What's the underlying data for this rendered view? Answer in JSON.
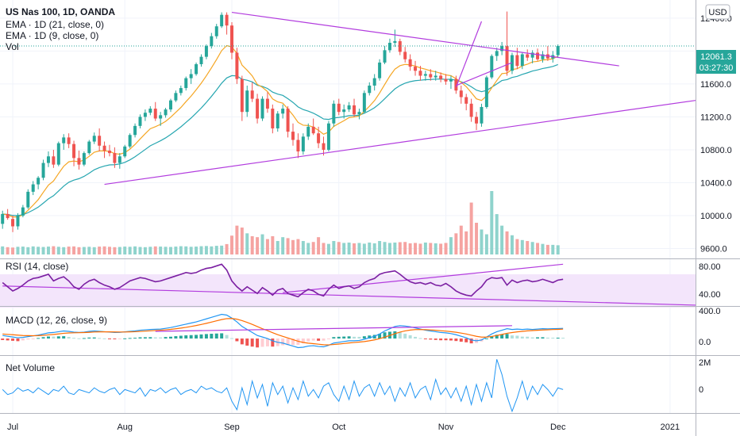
{
  "header": {
    "symbol_line": "US Nas 100, 1D, OANDA",
    "ema21": "EMA · 1D (21, close, 0)",
    "ema9": "EMA · 1D (9, close, 0)",
    "vol": "Vol",
    "currency": "USD"
  },
  "price_tag": {
    "last": "12061.3",
    "countdown": "03:27:30"
  },
  "panes": {
    "rsi": {
      "label": "RSI (14, close)",
      "ticks": [
        "80.00",
        "40.00"
      ]
    },
    "macd": {
      "label": "MACD (12, 26, close, 9)",
      "ticks": [
        "400.0",
        "0.0"
      ]
    },
    "netvol": {
      "label": "Net Volume",
      "ticks": [
        "2M",
        "0"
      ]
    }
  },
  "colors": {
    "up": "#26a69a",
    "down": "#ef5350",
    "trendline": "#b23cde",
    "ema21": "#26a6b0",
    "ema9": "#f5a623",
    "rsi": "#7b1fa2",
    "macd": "#2196f3",
    "signal": "#ff6d00",
    "netvol": "#2196f3"
  },
  "chart_data": {
    "type": "candlestick",
    "y_axis": {
      "ticks": [
        9600,
        10000,
        10400,
        10800,
        11200,
        11600,
        12000,
        12400
      ],
      "tick_labels": [
        "9600.0",
        "10000.0",
        "10400.0",
        "10800.0",
        "11200.0",
        "11600.0",
        "",
        "12400.0"
      ],
      "range": [
        9480,
        12620
      ]
    },
    "x_axis": {
      "labels": [
        "Jul",
        "Aug",
        "Sep",
        "Oct",
        "Nov",
        "Dec",
        "2021"
      ],
      "label_index": [
        2,
        24,
        45,
        66,
        87,
        109,
        131
      ],
      "range": [
        -0.5,
        136
      ]
    },
    "candles": [
      [
        9900,
        10060,
        9840,
        10020
      ],
      [
        10020,
        10080,
        9950,
        9970
      ],
      [
        9960,
        10000,
        9800,
        9870
      ],
      [
        9870,
        10030,
        9830,
        10000
      ],
      [
        10000,
        10130,
        9980,
        10100
      ],
      [
        10100,
        10320,
        10080,
        10290
      ],
      [
        10290,
        10420,
        10250,
        10380
      ],
      [
        10380,
        10480,
        10320,
        10460
      ],
      [
        10460,
        10680,
        10430,
        10640
      ],
      [
        10640,
        10780,
        10590,
        10720
      ],
      [
        10720,
        10800,
        10580,
        10620
      ],
      [
        10620,
        10900,
        10600,
        10880
      ],
      [
        10880,
        10990,
        10800,
        10950
      ],
      [
        10950,
        11000,
        10820,
        10870
      ],
      [
        10870,
        10910,
        10600,
        10700
      ],
      [
        10700,
        10790,
        10560,
        10620
      ],
      [
        10620,
        10780,
        10600,
        10760
      ],
      [
        10760,
        10920,
        10740,
        10900
      ],
      [
        10900,
        11010,
        10870,
        10970
      ],
      [
        10970,
        11060,
        10780,
        10850
      ],
      [
        10850,
        10900,
        10700,
        10790
      ],
      [
        10790,
        10860,
        10720,
        10760
      ],
      [
        10760,
        10830,
        10580,
        10640
      ],
      [
        10640,
        10760,
        10570,
        10720
      ],
      [
        10720,
        10860,
        10700,
        10840
      ],
      [
        10840,
        11000,
        10820,
        10980
      ],
      [
        10980,
        11120,
        10950,
        11090
      ],
      [
        11090,
        11230,
        11060,
        11200
      ],
      [
        11200,
        11290,
        11150,
        11250
      ],
      [
        11250,
        11330,
        11220,
        11300
      ],
      [
        11300,
        11380,
        11150,
        11180
      ],
      [
        11180,
        11260,
        11090,
        11220
      ],
      [
        11220,
        11310,
        11190,
        11290
      ],
      [
        11290,
        11420,
        11260,
        11400
      ],
      [
        11400,
        11520,
        11380,
        11490
      ],
      [
        11490,
        11580,
        11460,
        11550
      ],
      [
        11550,
        11690,
        11520,
        11670
      ],
      [
        11670,
        11780,
        11600,
        11720
      ],
      [
        11720,
        11860,
        11700,
        11840
      ],
      [
        11840,
        11960,
        11810,
        11930
      ],
      [
        11930,
        12080,
        11900,
        12060
      ],
      [
        12060,
        12220,
        12030,
        12180
      ],
      [
        12180,
        12330,
        12150,
        12300
      ],
      [
        12300,
        12470,
        12280,
        12440
      ],
      [
        12440,
        12470,
        12200,
        12310
      ],
      [
        12310,
        12350,
        11900,
        11980
      ],
      [
        11980,
        12040,
        11600,
        11660
      ],
      [
        11660,
        11700,
        11150,
        11260
      ],
      [
        11260,
        11580,
        11200,
        11520
      ],
      [
        11520,
        11620,
        11380,
        11420
      ],
      [
        11420,
        11480,
        11120,
        11180
      ],
      [
        11180,
        11450,
        11150,
        11420
      ],
      [
        11420,
        11500,
        11250,
        11300
      ],
      [
        11300,
        11350,
        11000,
        11060
      ],
      [
        11060,
        11270,
        11020,
        11240
      ],
      [
        11240,
        11350,
        11180,
        11300
      ],
      [
        11300,
        11330,
        10950,
        11020
      ],
      [
        11020,
        11120,
        10850,
        10920
      ],
      [
        10920,
        11000,
        10700,
        10780
      ],
      [
        10780,
        11000,
        10740,
        10960
      ],
      [
        10960,
        11120,
        10920,
        11080
      ],
      [
        11080,
        11180,
        10980,
        11000
      ],
      [
        11000,
        11080,
        10820,
        10880
      ],
      [
        10880,
        10960,
        10730,
        10800
      ],
      [
        10800,
        11150,
        10780,
        11120
      ],
      [
        11120,
        11400,
        11080,
        11360
      ],
      [
        11360,
        11420,
        11220,
        11260
      ],
      [
        11260,
        11350,
        11180,
        11290
      ],
      [
        11290,
        11380,
        11260,
        11340
      ],
      [
        11340,
        11420,
        11200,
        11230
      ],
      [
        11230,
        11300,
        11170,
        11260
      ],
      [
        11260,
        11520,
        11240,
        11490
      ],
      [
        11490,
        11620,
        11460,
        11580
      ],
      [
        11580,
        11720,
        11520,
        11670
      ],
      [
        11670,
        11900,
        11640,
        11860
      ],
      [
        11860,
        12060,
        11840,
        12010
      ],
      [
        12010,
        12150,
        11980,
        12100
      ],
      [
        12100,
        12260,
        12050,
        12120
      ],
      [
        12120,
        12150,
        11950,
        11990
      ],
      [
        11990,
        12050,
        11860,
        11900
      ],
      [
        11900,
        11960,
        11760,
        11810
      ],
      [
        11810,
        11880,
        11700,
        11760
      ],
      [
        11760,
        11820,
        11640,
        11700
      ],
      [
        11700,
        11760,
        11640,
        11720
      ],
      [
        11720,
        11780,
        11640,
        11680
      ],
      [
        11680,
        11760,
        11640,
        11700
      ],
      [
        11700,
        11740,
        11620,
        11660
      ],
      [
        11660,
        11720,
        11590,
        11630
      ],
      [
        11630,
        11700,
        11540,
        11660
      ],
      [
        11660,
        11700,
        11480,
        11520
      ],
      [
        11520,
        11580,
        11360,
        11440
      ],
      [
        11440,
        11480,
        11280,
        11360
      ],
      [
        11360,
        11420,
        11140,
        11200
      ],
      [
        11200,
        11260,
        11040,
        11120
      ],
      [
        11120,
        11360,
        11080,
        11320
      ],
      [
        11320,
        11700,
        11300,
        11680
      ],
      [
        11680,
        11960,
        11660,
        11940
      ],
      [
        11940,
        12040,
        11880,
        12000
      ],
      [
        12000,
        12110,
        11950,
        12060
      ],
      [
        12060,
        12480,
        11700,
        11760
      ],
      [
        11760,
        11980,
        11720,
        11950
      ],
      [
        11950,
        12040,
        11780,
        11820
      ],
      [
        11820,
        11980,
        11780,
        11960
      ],
      [
        11960,
        12020,
        11880,
        11920
      ],
      [
        11920,
        12010,
        11850,
        11980
      ],
      [
        11980,
        12030,
        11880,
        11900
      ],
      [
        11900,
        12000,
        11860,
        11960
      ],
      [
        11960,
        12060,
        11880,
        11910
      ],
      [
        11910,
        12000,
        11860,
        11950
      ],
      [
        11950,
        12080,
        11920,
        12061
      ]
    ],
    "volume": {
      "range": [
        0,
        3300
      ],
      "values": [
        420,
        380,
        360,
        400,
        410,
        380,
        420,
        400,
        390,
        410,
        430,
        400,
        380,
        410,
        420,
        380,
        390,
        400,
        380,
        410,
        420,
        400,
        380,
        390,
        410,
        400,
        420,
        390,
        380,
        400,
        420,
        410,
        400,
        390,
        410,
        430,
        420,
        400,
        410,
        430,
        440,
        420,
        450,
        460,
        540,
        980,
        1500,
        1400,
        1100,
        950,
        900,
        1050,
        800,
        950,
        700,
        900,
        850,
        750,
        800,
        700,
        600,
        650,
        900,
        600,
        550,
        700,
        650,
        600,
        620,
        580,
        600,
        560,
        620,
        580,
        700,
        650,
        600,
        620,
        640,
        650,
        580,
        600,
        560,
        620,
        600,
        580,
        560,
        600,
        900,
        1100,
        1500,
        1200,
        2700,
        1650,
        1300,
        1050,
        3300,
        2100,
        1500,
        1200,
        1000,
        800,
        750,
        700,
        650,
        600,
        550,
        500,
        500,
        480
      ]
    },
    "trendlines": [
      {
        "from": [
          45,
          12470
        ],
        "to": [
          121,
          11820
        ]
      },
      {
        "from": [
          20,
          10380
        ],
        "to": [
          136,
          11400
        ]
      },
      {
        "from": [
          89,
          11580
        ],
        "to": [
          100,
          11860
        ]
      },
      {
        "from": [
          89,
          11560
        ],
        "to": [
          94,
          12360
        ]
      }
    ],
    "rsi": {
      "range": [
        32,
        88
      ],
      "values": [
        60,
        55,
        50,
        53,
        57,
        62,
        65,
        66,
        68,
        70,
        62,
        65,
        67,
        62,
        55,
        52,
        58,
        62,
        64,
        60,
        57,
        55,
        52,
        54,
        58,
        62,
        64,
        66,
        65,
        63,
        61,
        62,
        64,
        66,
        68,
        70,
        72,
        71,
        72,
        75,
        77,
        78,
        80,
        82,
        75,
        62,
        55,
        50,
        55,
        51,
        47,
        54,
        50,
        45,
        51,
        53,
        47,
        45,
        43,
        48,
        52,
        50,
        46,
        44,
        52,
        57,
        53,
        55,
        56,
        53,
        55,
        60,
        63,
        65,
        70,
        72,
        73,
        74,
        70,
        65,
        61,
        59,
        60,
        58,
        60,
        57,
        56,
        59,
        55,
        50,
        47,
        45,
        44,
        50,
        55,
        63,
        66,
        65,
        66,
        57,
        63,
        60,
        62,
        63,
        61,
        62,
        64,
        62,
        60,
        63,
        64
      ],
      "trendlines": [
        {
          "from": [
            0,
            56
          ],
          "to": [
            136,
            33
          ]
        },
        {
          "from": [
            55,
            48
          ],
          "to": [
            110,
            82
          ]
        }
      ]
    },
    "macd": {
      "range": [
        -220,
        420
      ],
      "macd": [
        40,
        30,
        20,
        10,
        15,
        25,
        35,
        45,
        60,
        75,
        80,
        90,
        100,
        95,
        85,
        80,
        85,
        95,
        100,
        95,
        90,
        85,
        80,
        82,
        88,
        95,
        100,
        110,
        115,
        120,
        122,
        125,
        135,
        145,
        160,
        175,
        190,
        205,
        220,
        240,
        260,
        280,
        300,
        320,
        310,
        270,
        220,
        160,
        120,
        80,
        40,
        20,
        0,
        -30,
        -50,
        -60,
        -80,
        -100,
        -120,
        -115,
        -100,
        -95,
        -105,
        -110,
        -90,
        -60,
        -50,
        -40,
        -30,
        -30,
        -25,
        -10,
        10,
        30,
        60,
        100,
        130,
        160,
        170,
        165,
        155,
        140,
        125,
        110,
        100,
        90,
        80,
        75,
        65,
        50,
        30,
        10,
        -20,
        -30,
        -20,
        20,
        60,
        90,
        110,
        130,
        120,
        125,
        120,
        125,
        120,
        125,
        130,
        128,
        130,
        132,
        134
      ],
      "signal": [
        60,
        55,
        50,
        45,
        40,
        38,
        37,
        38,
        42,
        48,
        54,
        61,
        69,
        74,
        76,
        77,
        79,
        82,
        86,
        88,
        88,
        88,
        87,
        86,
        86,
        88,
        90,
        94,
        98,
        102,
        106,
        110,
        115,
        121,
        129,
        138,
        148,
        160,
        172,
        186,
        201,
        217,
        234,
        251,
        263,
        265,
        256,
        237,
        214,
        187,
        158,
        130,
        104,
        77,
        51,
        29,
        7,
        -15,
        -36,
        -52,
        -61,
        -68,
        -75,
        -82,
        -84,
        -79,
        -73,
        -66,
        -59,
        -53,
        -47,
        -40,
        -30,
        -18,
        -2,
        18,
        40,
        64,
        85,
        101,
        112,
        118,
        119,
        117,
        114,
        109,
        103,
        98,
        91,
        83,
        72,
        60,
        44,
        29,
        19,
        19,
        27,
        40,
        54,
        69,
        79,
        88,
        95,
        101,
        105,
        109,
        113,
        116,
        119,
        121,
        124
      ],
      "trendlines": [
        {
          "from": [
            30,
            95
          ],
          "to": [
            100,
            170
          ]
        }
      ]
    },
    "net_volume": {
      "range": [
        -1.3,
        2.1
      ],
      "values": [
        0.1,
        -0.2,
        -0.1,
        0.2,
        0,
        0.1,
        -0.1,
        0.2,
        0,
        -0.2,
        0.1,
        0,
        0.3,
        -0.1,
        -0.2,
        0.1,
        0,
        -0.1,
        0.2,
        0,
        -0.1,
        0.1,
        0.2,
        -0.2,
        0.1,
        0,
        -0.1,
        0.2,
        -0.3,
        0.1,
        0,
        0.2,
        -0.1,
        0.1,
        0.2,
        -0.2,
        0,
        0.1,
        -0.1,
        0.3,
        0.1,
        0.2,
        0,
        -0.1,
        0.2,
        -0.6,
        -1.1,
        0.2,
        -0.8,
        0.6,
        -0.4,
        0.4,
        -0.9,
        0.5,
        -0.2,
        0.3,
        -0.7,
        0.2,
        -0.5,
        0.6,
        -0.3,
        0.1,
        -0.4,
        0.3,
        0.5,
        -0.2,
        -0.6,
        0.3,
        -0.5,
        0.6,
        -0.3,
        0.2,
        0.4,
        -0.3,
        0.5,
        -0.2,
        0.3,
        -0.6,
        0.2,
        -0.3,
        0.5,
        -0.4,
        0.1,
        0.3,
        -0.5,
        0.7,
        -0.2,
        0.2,
        -0.4,
        0.2,
        -0.6,
        0.3,
        -0.8,
        0.4,
        -0.6,
        0.5,
        -0.4,
        1.9,
        1.0,
        -0.3,
        -1.2,
        -0.4,
        0.6,
        -0.5,
        0.3,
        -0.2,
        0.4,
        0.1,
        -0.3,
        0.2,
        0.1
      ]
    }
  }
}
